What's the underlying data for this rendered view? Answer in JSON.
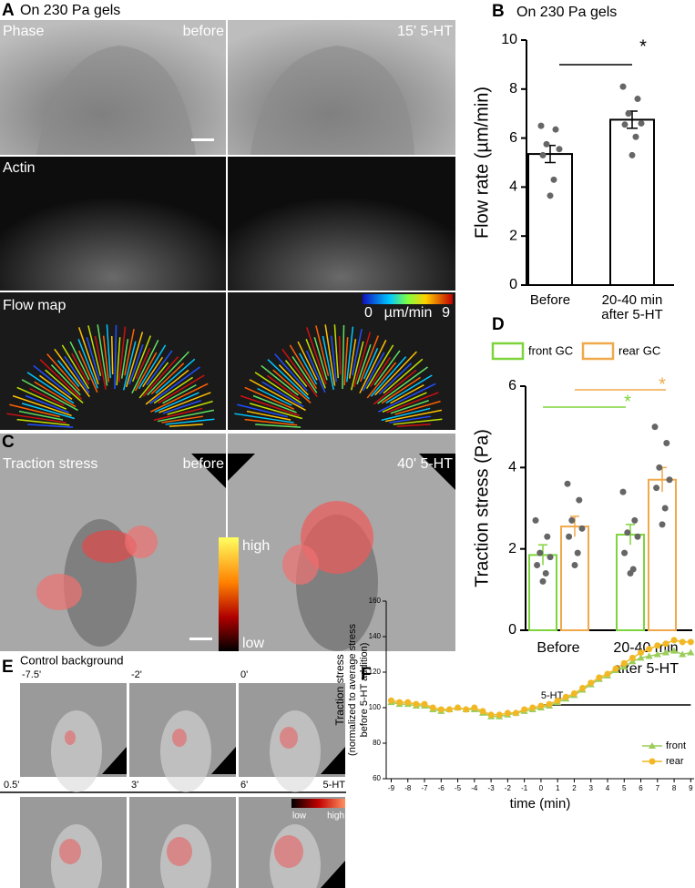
{
  "panel_a": {
    "letter": "A",
    "title": "On 230 Pa gels",
    "rows": [
      "Phase",
      "Actin",
      "Flow map"
    ],
    "conditions": [
      "before",
      "15' 5-HT"
    ],
    "colorbar": {
      "range": [
        0,
        9
      ],
      "unit": "µm/min"
    }
  },
  "panel_c": {
    "letter": "C",
    "label": "Traction stress",
    "conditions": [
      "before",
      "40' 5-HT"
    ],
    "colorbar": {
      "high": "high",
      "low": "low"
    }
  },
  "panel_e": {
    "letter": "E",
    "title": "Control background",
    "times": [
      "-7.5'",
      "-2'",
      "0'",
      "0.5'",
      "3'",
      "6'"
    ],
    "treatment": "5-HT",
    "colorbar": {
      "low": "low",
      "high": "high"
    }
  },
  "chart_data": [
    {
      "type": "bar",
      "letter": "B",
      "title": "On 230 Pa gels",
      "ylabel": "Flow rate (µm/min)",
      "categories": [
        [
          "Before"
        ],
        [
          "20-40 min",
          "after 5-HT"
        ]
      ],
      "values": [
        5.35,
        6.75
      ],
      "errors": [
        0.35,
        0.35
      ],
      "points": [
        [
          6.5,
          6.35,
          5.75,
          5.55,
          5.3,
          4.3,
          3.65
        ],
        [
          8.1,
          7.6,
          7.0,
          6.6,
          6.55,
          6.05,
          5.3
        ]
      ],
      "color": "#000000",
      "ylim": [
        0,
        10
      ],
      "yticks": [
        0,
        2,
        4,
        6,
        8,
        10
      ],
      "annotation": "*"
    },
    {
      "type": "grouped_bar",
      "letter": "D",
      "ylabel": "Traction stress (Pa)",
      "categories": [
        [
          "Before"
        ],
        [
          "20-40 min",
          "after 5-HT"
        ]
      ],
      "series": [
        {
          "name": "front GC",
          "color": "#7ed43c",
          "values": [
            1.85,
            2.35
          ],
          "errors": [
            0.25,
            0.25
          ],
          "points": [
            [
              2.7,
              2.3,
              1.9,
              1.8,
              1.6,
              1.4,
              1.2
            ],
            [
              3.4,
              2.7,
              2.4,
              2.3,
              1.9,
              1.5,
              1.4
            ]
          ]
        },
        {
          "name": "rear GC",
          "color": "#f0a94a",
          "values": [
            2.55,
            3.7
          ],
          "errors": [
            0.25,
            0.3
          ],
          "points": [
            [
              3.6,
              3.2,
              2.7,
              2.5,
              2.3,
              1.9,
              1.6
            ],
            [
              5.0,
              4.6,
              4.0,
              3.7,
              3.5,
              3.0,
              2.6
            ]
          ]
        }
      ],
      "annotations": [
        "*",
        "*"
      ],
      "ylim": [
        0,
        6
      ],
      "yticks": [
        0,
        2,
        4,
        6
      ],
      "legend": "top"
    },
    {
      "type": "line",
      "letter": "F",
      "xlabel": "time (min)",
      "ylabel": [
        "Traction stress",
        "(normalized to average stress",
        "before 5-HT addition)"
      ],
      "x": [
        -9,
        -8.5,
        -8,
        -7.5,
        -7,
        -6.5,
        -6,
        -5.5,
        -5,
        -4.5,
        -4,
        -3.5,
        -3,
        -2.5,
        -2,
        -1.5,
        -1,
        -0.5,
        0,
        0.5,
        1,
        1.5,
        2,
        2.5,
        3,
        3.5,
        4,
        4.5,
        5,
        5.5,
        6,
        6.5,
        7,
        7.5,
        8,
        8.5,
        9
      ],
      "series": [
        {
          "name": "front",
          "color": "#9acd5a",
          "marker": "triangle",
          "values": [
            103,
            102,
            102,
            101,
            101,
            99,
            98,
            99,
            100,
            99,
            99,
            97,
            95,
            95,
            96,
            97,
            98,
            99,
            100,
            101,
            103,
            105,
            107,
            110,
            113,
            116,
            118,
            121,
            123,
            126,
            128,
            129,
            130,
            131,
            132,
            130,
            131
          ]
        },
        {
          "name": "rear",
          "color": "#f2b824",
          "marker": "circle",
          "values": [
            104,
            103,
            103,
            102,
            102,
            100,
            99,
            99,
            100,
            99,
            100,
            98,
            96,
            96,
            97,
            97,
            99,
            100,
            101,
            102,
            104,
            106,
            108,
            111,
            114,
            117,
            119,
            122,
            125,
            128,
            131,
            133,
            135,
            136,
            138,
            137,
            137
          ]
        }
      ],
      "xlim": [
        -9.3,
        9.2
      ],
      "xticks": [
        -9,
        -8,
        -7,
        -6,
        -5,
        -4,
        -3,
        -2,
        -1,
        0,
        1,
        2,
        3,
        4,
        5,
        6,
        7,
        8,
        9
      ],
      "ylim": [
        60,
        160
      ],
      "yticks": [
        60,
        80,
        100,
        120,
        140,
        160
      ],
      "annotation": {
        "label": "5-HT",
        "start": 0,
        "end": 9
      },
      "legend": "lower right"
    }
  ]
}
